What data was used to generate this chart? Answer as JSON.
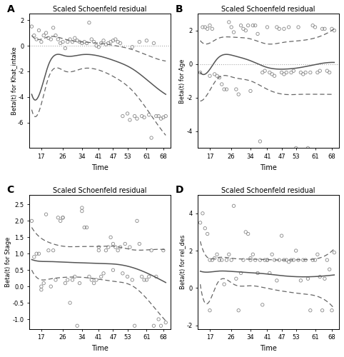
{
  "title": "Scaled Schoenfeld residual",
  "xlabel": "Time",
  "xticks": [
    17,
    26,
    34,
    41,
    47,
    53,
    61,
    68
  ],
  "panels": [
    {
      "label": "A",
      "ylabel": "Beta(t) for Khat_intake",
      "ylim": [
        -8,
        2.5
      ],
      "yticks": [
        2,
        0,
        -2,
        -4,
        -6
      ],
      "hline": 0,
      "scatter_x": [
        13,
        14,
        15,
        16,
        17,
        18,
        19,
        20,
        21,
        22,
        23,
        24,
        25,
        26,
        27,
        28,
        29,
        30,
        31,
        32,
        33,
        34,
        35,
        36,
        37,
        38,
        39,
        40,
        41,
        42,
        43,
        44,
        45,
        46,
        47,
        48,
        49,
        50,
        51,
        53,
        54,
        55,
        56,
        57,
        58,
        59,
        60,
        61,
        62,
        63,
        64,
        65,
        66,
        67,
        68,
        69
      ],
      "scatter_y": [
        1.5,
        0.8,
        0.5,
        1.2,
        0.3,
        0.8,
        1.0,
        0.6,
        0.5,
        1.4,
        0.8,
        0.5,
        0.2,
        0.3,
        -0.2,
        0.3,
        0.5,
        0.3,
        0.6,
        0.4,
        0.3,
        0.2,
        0.3,
        0.2,
        1.8,
        0.5,
        0.3,
        0.0,
        -0.1,
        0.2,
        0.4,
        0.1,
        0.2,
        0.3,
        0.4,
        0.5,
        0.3,
        0.2,
        -5.5,
        -5.3,
        -5.8,
        -0.1,
        -5.5,
        -5.7,
        0.3,
        -5.5,
        -5.6,
        0.4,
        -5.4,
        -7.2,
        0.2,
        -5.5,
        -5.5,
        -5.7,
        -5.6,
        -5.5
      ],
      "curve_x": [
        13,
        15,
        20,
        27,
        34,
        41,
        48,
        55,
        62,
        69
      ],
      "curve_y": [
        -3.8,
        -4.2,
        -1.5,
        -0.8,
        -0.7,
        -0.8,
        -1.2,
        -1.8,
        -2.8,
        -3.8
      ],
      "upper_x": [
        13,
        15,
        20,
        27,
        34,
        41,
        48,
        55,
        62,
        69
      ],
      "upper_y": [
        0.8,
        0.5,
        0.7,
        0.5,
        0.3,
        0.2,
        0.0,
        -0.3,
        -0.8,
        -1.2
      ],
      "lower_x": [
        13,
        15,
        20,
        27,
        34,
        41,
        48,
        55,
        62,
        69
      ],
      "lower_y": [
        -5.0,
        -5.5,
        -2.5,
        -2.0,
        -1.8,
        -1.9,
        -2.5,
        -3.5,
        -5.2,
        -7.0
      ]
    },
    {
      "label": "B",
      "ylabel": "Beta(t) for Age",
      "ylim": [
        -5,
        3
      ],
      "yticks": [
        2,
        0,
        -2,
        -4
      ],
      "hline": 0,
      "scatter_x": [
        13,
        14,
        15,
        16,
        17,
        17,
        18,
        19,
        20,
        21,
        22,
        23,
        24,
        25,
        26,
        27,
        28,
        29,
        30,
        31,
        32,
        33,
        34,
        35,
        36,
        37,
        38,
        39,
        40,
        41,
        42,
        43,
        44,
        45,
        46,
        47,
        48,
        48,
        49,
        50,
        51,
        52,
        53,
        54,
        55,
        56,
        57,
        58,
        59,
        60,
        61,
        62,
        63,
        64,
        65,
        66,
        67,
        68,
        69
      ],
      "scatter_y": [
        -0.5,
        2.2,
        2.2,
        2.1,
        2.3,
        -0.7,
        2.1,
        -0.6,
        -0.7,
        -0.8,
        -1.2,
        -1.5,
        -1.5,
        2.5,
        2.2,
        1.9,
        -1.5,
        -1.8,
        2.3,
        2.1,
        2.0,
        2.3,
        -1.6,
        2.3,
        2.3,
        1.8,
        -4.6,
        -0.5,
        -0.4,
        2.2,
        -0.5,
        -0.6,
        -0.7,
        2.2,
        2.1,
        -0.5,
        -0.6,
        2.1,
        -0.5,
        2.2,
        -0.5,
        -0.4,
        -5.0,
        2.2,
        -0.5,
        -0.6,
        -0.5,
        -5.0,
        -0.5,
        2.3,
        2.2,
        -0.5,
        -0.4,
        2.1,
        2.1,
        -0.4,
        -0.5,
        2.1,
        2.0
      ],
      "curve_x": [
        13,
        15,
        20,
        27,
        34,
        41,
        48,
        55,
        62,
        69
      ],
      "curve_y": [
        -0.5,
        -0.6,
        0.3,
        0.5,
        0.2,
        -0.2,
        -0.3,
        -0.2,
        0.0,
        0.1
      ],
      "upper_x": [
        13,
        15,
        20,
        27,
        34,
        41,
        48,
        55,
        62,
        69
      ],
      "upper_y": [
        1.4,
        1.2,
        1.5,
        1.6,
        1.5,
        1.2,
        1.3,
        1.4,
        1.6,
        2.1
      ],
      "lower_x": [
        13,
        15,
        20,
        27,
        34,
        41,
        48,
        55,
        62,
        69
      ],
      "lower_y": [
        -2.2,
        -2.0,
        -0.9,
        -0.8,
        -1.0,
        -1.5,
        -1.8,
        -1.8,
        -1.8,
        -1.8
      ]
    },
    {
      "label": "C",
      "ylabel": "Beta(t) for Stage",
      "ylim": [
        -1.3,
        2.8
      ],
      "yticks": [
        2.5,
        2.0,
        1.5,
        1.0,
        0.5,
        0.0,
        -0.5,
        -1.0
      ],
      "hline": null,
      "scatter_x": [
        13,
        14,
        15,
        16,
        17,
        17,
        18,
        19,
        20,
        21,
        22,
        23,
        24,
        25,
        26,
        26,
        27,
        28,
        29,
        30,
        31,
        32,
        33,
        34,
        34,
        35,
        36,
        37,
        38,
        39,
        40,
        41,
        41,
        42,
        43,
        44,
        45,
        46,
        47,
        47,
        48,
        49,
        50,
        51,
        52,
        53,
        54,
        55,
        56,
        57,
        58,
        59,
        60,
        61,
        62,
        63,
        64,
        65,
        66,
        67,
        68,
        69
      ],
      "scatter_y": [
        2.0,
        0.9,
        1.0,
        1.0,
        0.0,
        -0.1,
        0.1,
        2.2,
        1.1,
        0.0,
        1.1,
        0.2,
        2.1,
        2.0,
        2.1,
        2.1,
        0.1,
        0.2,
        -0.5,
        0.2,
        0.3,
        -1.2,
        0.1,
        2.4,
        2.3,
        1.8,
        1.8,
        0.3,
        0.2,
        0.1,
        0.2,
        1.1,
        1.2,
        0.3,
        0.4,
        1.1,
        1.2,
        1.5,
        0.5,
        1.3,
        1.2,
        1.1,
        1.2,
        0.4,
        1.3,
        0.3,
        1.2,
        0.2,
        -1.2,
        2.0,
        1.3,
        0.3,
        0.2,
        0.2,
        0.3,
        1.1,
        -1.2,
        0.3,
        -1.0,
        -1.2,
        1.1,
        -1.1
      ],
      "curve_x": [
        13,
        15,
        20,
        27,
        34,
        41,
        48,
        55,
        62,
        69
      ],
      "curve_y": [
        0.82,
        0.78,
        0.76,
        0.74,
        0.72,
        0.7,
        0.68,
        0.58,
        0.38,
        0.12
      ],
      "upper_x": [
        13,
        15,
        20,
        27,
        34,
        41,
        48,
        55,
        62,
        69
      ],
      "upper_y": [
        1.8,
        1.6,
        1.35,
        1.22,
        1.22,
        1.22,
        1.22,
        1.12,
        1.12,
        1.12
      ],
      "lower_x": [
        13,
        15,
        20,
        27,
        34,
        41,
        48,
        55,
        62,
        69
      ],
      "lower_y": [
        0.5,
        0.28,
        0.22,
        0.28,
        0.28,
        0.22,
        0.15,
        0.02,
        -0.45,
        -1.05
      ]
    },
    {
      "label": "D",
      "ylabel": "Beta(t) for rel_des",
      "ylim": [
        -2.2,
        5.0
      ],
      "yticks": [
        4,
        2,
        0,
        -2
      ],
      "hline": null,
      "scatter_x": [
        13,
        14,
        15,
        16,
        17,
        17,
        18,
        19,
        20,
        21,
        22,
        23,
        24,
        25,
        26,
        27,
        28,
        29,
        30,
        31,
        32,
        33,
        34,
        34,
        35,
        36,
        37,
        38,
        39,
        40,
        41,
        41,
        42,
        43,
        44,
        45,
        46,
        47,
        48,
        49,
        50,
        51,
        52,
        53,
        54,
        55,
        56,
        57,
        58,
        59,
        60,
        61,
        62,
        63,
        64,
        65,
        66,
        67,
        68,
        69
      ],
      "scatter_y": [
        3.5,
        4.0,
        3.2,
        2.9,
        1.5,
        -1.2,
        1.5,
        1.6,
        1.8,
        1.5,
        1.5,
        0.2,
        1.5,
        1.8,
        1.5,
        4.4,
        0.5,
        -1.2,
        0.8,
        1.5,
        3.0,
        2.9,
        1.6,
        1.5,
        1.8,
        1.5,
        0.8,
        1.5,
        -0.9,
        1.5,
        1.5,
        1.5,
        0.8,
        1.8,
        1.5,
        0.4,
        1.5,
        2.8,
        1.5,
        1.5,
        1.4,
        1.5,
        1.5,
        2.0,
        1.5,
        0.4,
        1.5,
        1.5,
        0.5,
        -1.2,
        1.5,
        1.5,
        1.8,
        0.6,
        -1.2,
        0.5,
        1.5,
        1.0,
        -1.2,
        1.9
      ],
      "curve_x": [
        13,
        15,
        20,
        27,
        34,
        41,
        48,
        55,
        62,
        69
      ],
      "curve_y": [
        0.9,
        0.85,
        0.9,
        0.88,
        0.82,
        0.75,
        0.65,
        0.6,
        0.62,
        0.7
      ],
      "upper_x": [
        13,
        15,
        20,
        27,
        34,
        41,
        48,
        55,
        62,
        69
      ],
      "upper_y": [
        2.5,
        1.8,
        1.62,
        1.58,
        1.55,
        1.52,
        1.5,
        1.52,
        1.58,
        2.1
      ],
      "lower_x": [
        13,
        15,
        20,
        27,
        34,
        41,
        48,
        55,
        62,
        69
      ],
      "lower_y": [
        0.2,
        -0.8,
        0.22,
        0.2,
        0.12,
        -0.02,
        -0.18,
        -0.3,
        -0.45,
        -1.1
      ]
    }
  ],
  "curve_color": "#555555",
  "scatter_color": "#888888",
  "dashed_color": "#666666",
  "hline_color": "#aaaaaa",
  "bg_color": "#ffffff",
  "border_color": "#000000"
}
